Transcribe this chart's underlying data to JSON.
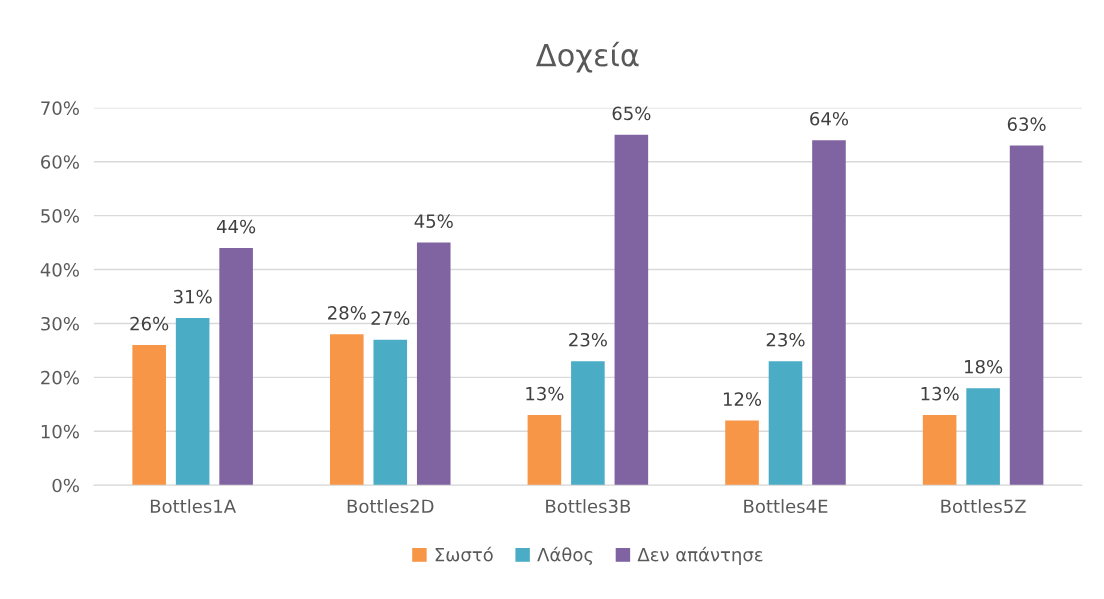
{
  "chart_data": {
    "type": "bar",
    "title": "Δοχεία",
    "categories": [
      "Bottles1A",
      "Bottles2D",
      "Bottles3B",
      "Bottles4E",
      "Bottles5Z"
    ],
    "series": [
      {
        "name": "Σωστό",
        "color": "#f79646",
        "values": [
          26,
          28,
          13,
          12,
          13
        ]
      },
      {
        "name": "Λάθος",
        "color": "#4bacc6",
        "values": [
          31,
          27,
          23,
          23,
          18
        ]
      },
      {
        "name": "Δεν απάντησε",
        "color": "#8064a2",
        "values": [
          44,
          45,
          65,
          64,
          63
        ]
      }
    ],
    "ylim": [
      0,
      70
    ],
    "yticks": [
      {
        "value": 0,
        "label": "0%"
      },
      {
        "value": 10,
        "label": "10%"
      },
      {
        "value": 20,
        "label": "20%"
      },
      {
        "value": 30,
        "label": "30%"
      },
      {
        "value": 40,
        "label": "40%"
      },
      {
        "value": 50,
        "label": "50%"
      },
      {
        "value": 60,
        "label": "60%"
      },
      {
        "value": 70,
        "label": "70%"
      }
    ],
    "value_labels": [
      [
        "26%",
        "28%",
        "13%",
        "12%",
        "13%"
      ],
      [
        "31%",
        "27%",
        "23%",
        "23%",
        "18%"
      ],
      [
        "44%",
        "45%",
        "65%",
        "64%",
        "63%"
      ]
    ],
    "grid": "y",
    "legend": "bottom"
  }
}
